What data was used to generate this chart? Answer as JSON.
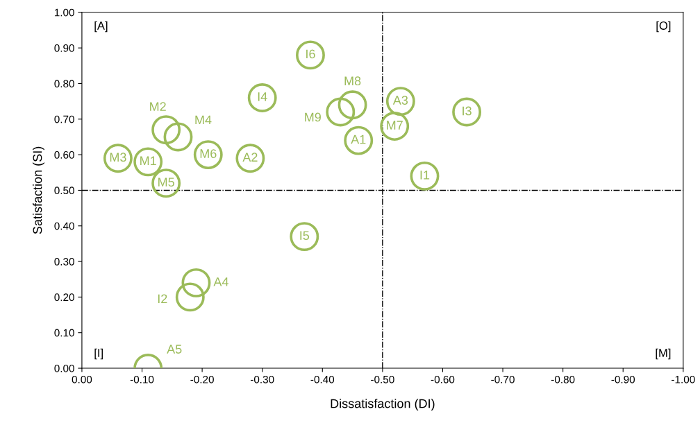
{
  "chart_data": {
    "type": "scatter",
    "xlabel": "Dissatisfaction (DI)",
    "ylabel": "Satisfaction (SI)",
    "xlim": [
      0,
      -1
    ],
    "ylim": [
      0,
      1
    ],
    "xticks": [
      {
        "value": 0,
        "label": "0.00"
      },
      {
        "value": -0.1,
        "label": "-0.10"
      },
      {
        "value": -0.2,
        "label": "-0.20"
      },
      {
        "value": -0.3,
        "label": "-0.30"
      },
      {
        "value": -0.4,
        "label": "-0.40"
      },
      {
        "value": -0.5,
        "label": "-0.50"
      },
      {
        "value": -0.6,
        "label": "-0.60"
      },
      {
        "value": -0.7,
        "label": "-0.70"
      },
      {
        "value": -0.8,
        "label": "-0.80"
      },
      {
        "value": -0.9,
        "label": "-0.90"
      },
      {
        "value": -1,
        "label": "-1.00"
      }
    ],
    "yticks": [
      {
        "value": 0,
        "label": "0.00"
      },
      {
        "value": 0.1,
        "label": "0.10"
      },
      {
        "value": 0.2,
        "label": "0.20"
      },
      {
        "value": 0.3,
        "label": "0.30"
      },
      {
        "value": 0.4,
        "label": "0.40"
      },
      {
        "value": 0.5,
        "label": "0.50"
      },
      {
        "value": 0.6,
        "label": "0.60"
      },
      {
        "value": 0.7,
        "label": "0.70"
      },
      {
        "value": 0.8,
        "label": "0.80"
      },
      {
        "value": 0.9,
        "label": "0.90"
      },
      {
        "value": 1,
        "label": "1.00"
      }
    ],
    "grid": false,
    "legend": false,
    "marker": "circle",
    "ref_lines": [
      {
        "axis": "x",
        "value": -0.5,
        "color": "#000000",
        "line_style": "dashdot"
      },
      {
        "axis": "y",
        "value": 0.5,
        "color": "#000000",
        "line_style": "dashdot"
      }
    ],
    "annotations": [
      "[A]",
      "[O]",
      "[I]",
      "[M]"
    ],
    "series": [
      {
        "name": "I6",
        "color": "#9bbb59",
        "x": [
          -0.38
        ],
        "values": [
          0.88
        ]
      },
      {
        "name": "M8",
        "color": "#9bbb59",
        "x": [
          -0.45
        ],
        "values": [
          0.74
        ]
      },
      {
        "name": "M9",
        "color": "#9bbb59",
        "x": [
          -0.43
        ],
        "values": [
          0.72
        ]
      },
      {
        "name": "A3",
        "color": "#9bbb59",
        "x": [
          -0.53
        ],
        "values": [
          0.75
        ]
      },
      {
        "name": "M7",
        "color": "#9bbb59",
        "x": [
          -0.52
        ],
        "values": [
          0.68
        ]
      },
      {
        "name": "I3",
        "color": "#9bbb59",
        "x": [
          -0.64
        ],
        "values": [
          0.72
        ]
      },
      {
        "name": "I4",
        "color": "#9bbb59",
        "x": [
          -0.3
        ],
        "values": [
          0.76
        ]
      },
      {
        "name": "M2",
        "color": "#9bbb59",
        "x": [
          -0.14
        ],
        "values": [
          0.67
        ]
      },
      {
        "name": "M4",
        "color": "#9bbb59",
        "x": [
          -0.16
        ],
        "values": [
          0.65
        ]
      },
      {
        "name": "M6",
        "color": "#9bbb59",
        "x": [
          -0.21
        ],
        "values": [
          0.6
        ]
      },
      {
        "name": "A2",
        "color": "#9bbb59",
        "x": [
          -0.28
        ],
        "values": [
          0.59
        ]
      },
      {
        "name": "A1",
        "color": "#9bbb59",
        "x": [
          -0.46
        ],
        "values": [
          0.64
        ]
      },
      {
        "name": "I1",
        "color": "#9bbb59",
        "x": [
          -0.57
        ],
        "values": [
          0.54
        ]
      },
      {
        "name": "M3",
        "color": "#9bbb59",
        "x": [
          -0.06
        ],
        "values": [
          0.59
        ]
      },
      {
        "name": "M1",
        "color": "#9bbb59",
        "x": [
          -0.11
        ],
        "values": [
          0.58
        ]
      },
      {
        "name": "M5",
        "color": "#9bbb59",
        "x": [
          -0.14
        ],
        "values": [
          0.52
        ]
      },
      {
        "name": "I5",
        "color": "#9bbb59",
        "x": [
          -0.37
        ],
        "values": [
          0.37
        ]
      },
      {
        "name": "A4",
        "color": "#9bbb59",
        "x": [
          -0.19
        ],
        "values": [
          0.24
        ]
      },
      {
        "name": "I2",
        "color": "#9bbb59",
        "x": [
          -0.18
        ],
        "values": [
          0.2
        ]
      },
      {
        "name": "A5",
        "color": "#9bbb59",
        "x": [
          -0.11
        ],
        "values": [
          0.0
        ]
      }
    ]
  }
}
